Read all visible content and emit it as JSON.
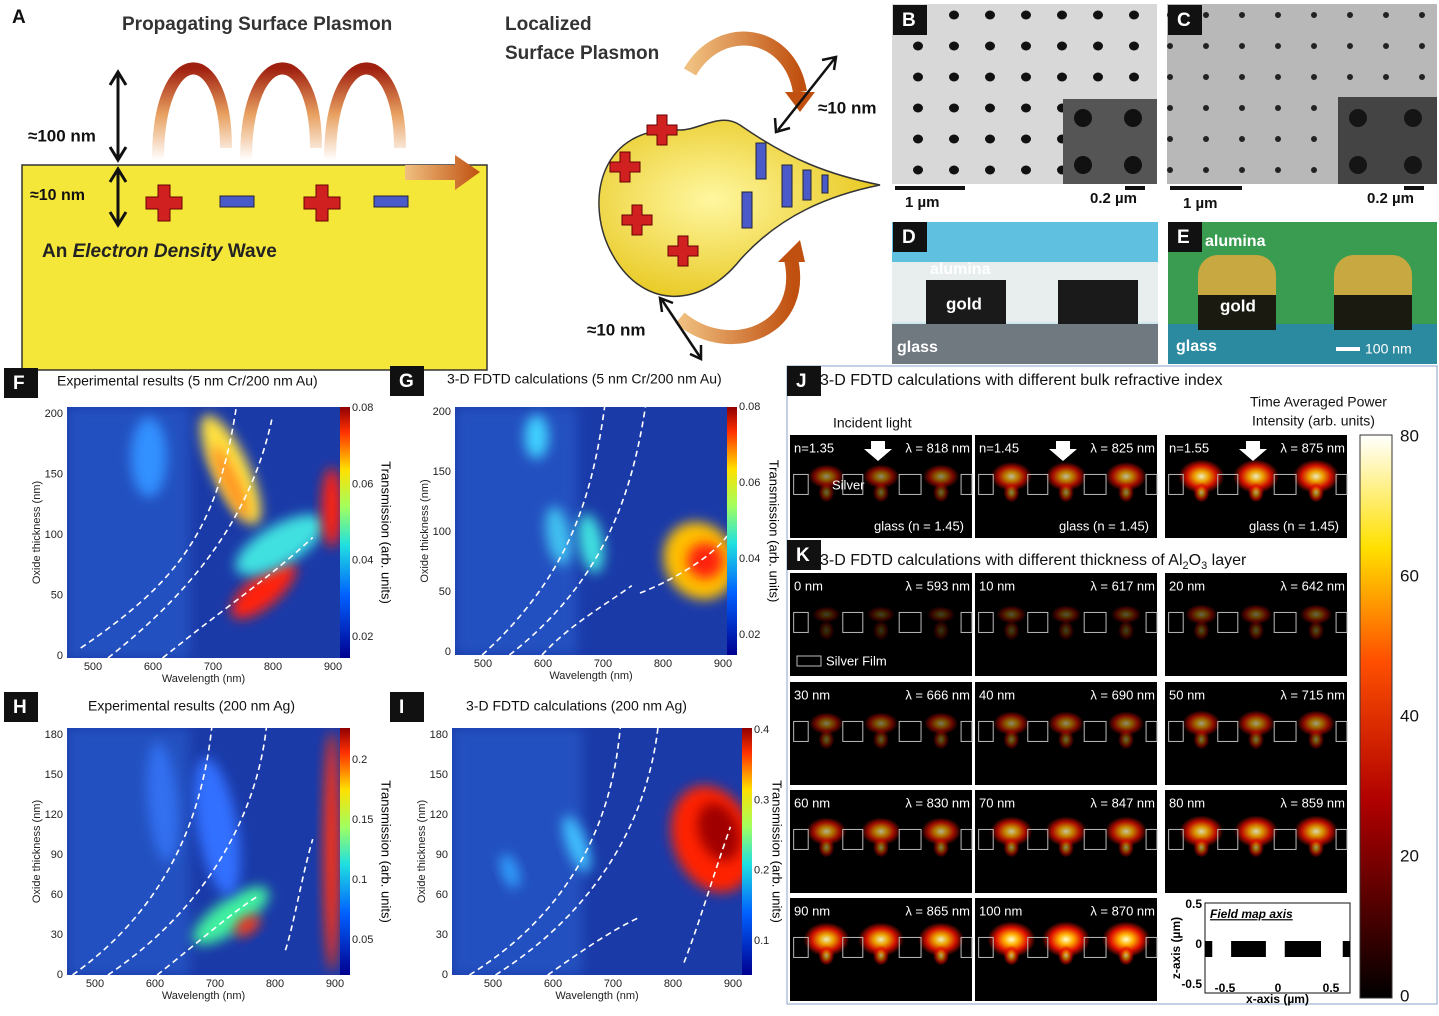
{
  "figure": {
    "A": {
      "label": "A",
      "title": "Propagating Surface Plasmon",
      "height_label": "≈100 nm",
      "depth_label": "≈10 nm",
      "wave_prefix": "An ",
      "wave_emphasis": "Electron Density",
      "wave_suffix": " Wave",
      "localized_title": [
        "Localized",
        "Surface Plasmon"
      ],
      "localized_decay_top": "≈10 nm",
      "localized_decay_bottom": "≈10 nm"
    },
    "B": {
      "label": "B",
      "scale_main": "1 µm",
      "scale_inset": "0.2 µm"
    },
    "C": {
      "label": "C",
      "scale_main": "1 µm",
      "scale_inset": "0.2 µm"
    },
    "D": {
      "label": "D",
      "top_layer": "alumina",
      "metal": "gold",
      "substrate": "glass"
    },
    "E": {
      "label": "E",
      "top_layer": "alumina",
      "metal": "gold",
      "substrate": "glass",
      "scale": "100 nm"
    },
    "F": {
      "label": "F",
      "title": "Experimental results (5 nm Cr/200 nm Au)",
      "x_label": "Wavelength (nm)",
      "y_label": "Oxide thickness (nm)",
      "colorbar_label": "Transmission (arb. units)",
      "xticks": [
        500,
        600,
        700,
        800,
        900
      ],
      "yticks": [
        0,
        50,
        100,
        150,
        200
      ],
      "colorbar_ticks": [
        0.02,
        0.04,
        0.06,
        0.08
      ]
    },
    "G": {
      "label": "G",
      "title": "3-D FDTD calculations (5 nm Cr/200 nm Au)",
      "x_label": "Wavelength (nm)",
      "y_label": "Oxide thickness (nm)",
      "colorbar_label": "Transmission (arb. units)",
      "xticks": [
        500,
        600,
        700,
        800,
        900
      ],
      "yticks": [
        0,
        50,
        100,
        150,
        200
      ],
      "colorbar_ticks": [
        0.02,
        0.04,
        0.06,
        0.08
      ]
    },
    "H": {
      "label": "H",
      "title": "Experimental results (200 nm Ag)",
      "x_label": "Wavelength (nm)",
      "y_label": "Oxide thickness (nm)",
      "colorbar_label": "Transmission (arb. units)",
      "xticks": [
        500,
        600,
        700,
        800,
        900
      ],
      "yticks": [
        0,
        30,
        60,
        90,
        120,
        150,
        180
      ],
      "colorbar_ticks": [
        0.05,
        0.1,
        0.15,
        0.2
      ]
    },
    "I": {
      "label": "I",
      "title": "3-D FDTD calculations (200 nm Ag)",
      "x_label": "Wavelength (nm)",
      "y_label": "Oxide thickness (nm)",
      "colorbar_label": "Transmission (arb. units)",
      "xticks": [
        500,
        600,
        700,
        800,
        900
      ],
      "yticks": [
        0,
        30,
        60,
        90,
        120,
        150,
        180
      ],
      "colorbar_ticks": [
        0.1,
        0.2,
        0.3,
        0.4
      ]
    },
    "J": {
      "label": "J",
      "title": "3-D FDTD calculations with different bulk refractive index",
      "incident_label": "Incident light",
      "material_label": "Silver",
      "cells": [
        {
          "index": "n=1.35",
          "wavelength": "λ = 818 nm",
          "substrate": "glass (n = 1.45)"
        },
        {
          "index": "n=1.45",
          "wavelength": "λ = 825 nm",
          "substrate": "glass (n = 1.45)"
        },
        {
          "index": "n=1.55",
          "wavelength": "λ = 875 nm",
          "substrate": "glass (n = 1.45)"
        }
      ]
    },
    "K": {
      "label": "K",
      "title_parts": [
        "3-D FDTD calculations with different thickness of Al",
        "2",
        "O",
        "3",
        " layer"
      ],
      "legend_label": "Silver Film",
      "cells": [
        {
          "thickness": "0 nm",
          "wavelength": "λ = 593 nm"
        },
        {
          "thickness": "10 nm",
          "wavelength": "λ = 617 nm"
        },
        {
          "thickness": "20 nm",
          "wavelength": "λ = 642 nm"
        },
        {
          "thickness": "30 nm",
          "wavelength": "λ = 666 nm"
        },
        {
          "thickness": "40 nm",
          "wavelength": "λ = 690 nm"
        },
        {
          "thickness": "50 nm",
          "wavelength": "λ = 715 nm"
        },
        {
          "thickness": "60 nm",
          "wavelength": "λ = 830 nm"
        },
        {
          "thickness": "70 nm",
          "wavelength": "λ = 847 nm"
        },
        {
          "thickness": "80 nm",
          "wavelength": "λ = 859 nm"
        },
        {
          "thickness": "90 nm",
          "wavelength": "λ = 865 nm"
        },
        {
          "thickness": "100 nm",
          "wavelength": "λ = 870 nm"
        }
      ],
      "inset": {
        "title": "Field map axis",
        "x_label": "x-axis (µm)",
        "y_label": "z-axis (µm)",
        "xticks": [
          -0.5,
          0,
          0.5
        ],
        "yticks": [
          0.5,
          0,
          -0.5
        ]
      }
    },
    "colorbar": {
      "title_lines": [
        "Time Averaged Power",
        "Intensity (arb. units)"
      ],
      "ticks": [
        80,
        60,
        40,
        20,
        0
      ]
    }
  }
}
